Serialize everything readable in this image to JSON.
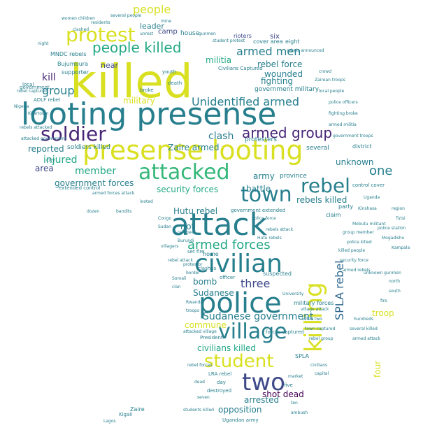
{
  "palette": {
    "yellow": "#d9e021",
    "yellow_green": "#a8db34",
    "green": "#35b779",
    "teal_green": "#22a884",
    "teal": "#1f968b",
    "blue_teal": "#277f8e",
    "blue": "#31688e",
    "indigo": "#3e4989",
    "purple": "#482677",
    "dark_purple": "#440154"
  },
  "words": [
    {
      "text": "killed",
      "color": "yellow"
    },
    {
      "text": "looting presense",
      "color": "blue_teal"
    },
    {
      "text": "presense looting",
      "color": "yellow"
    },
    {
      "text": "attack",
      "color": "blue_teal"
    },
    {
      "text": "police",
      "color": "blue_teal"
    },
    {
      "text": "civilian",
      "color": "blue_teal"
    },
    {
      "text": "attacked",
      "color": "green"
    },
    {
      "text": "killing",
      "color": "yellow"
    },
    {
      "text": "town",
      "color": "blue_teal"
    },
    {
      "text": "village",
      "color": "blue_teal"
    },
    {
      "text": "two",
      "color": "indigo"
    },
    {
      "text": "student",
      "color": "yellow"
    },
    {
      "text": "soldier",
      "color": "purple"
    },
    {
      "text": "protest",
      "color": "yellow"
    },
    {
      "text": "rebel",
      "color": "blue_teal"
    },
    {
      "text": "people killed",
      "color": "teal_green"
    },
    {
      "text": "armed group",
      "color": "purple"
    },
    {
      "text": "armed forces",
      "color": "teal_green"
    },
    {
      "text": "Unidentified armed",
      "color": "blue_teal"
    },
    {
      "text": "armed men",
      "color": "blue_teal"
    },
    {
      "text": "SPLA rebel",
      "color": "blue"
    },
    {
      "text": "people",
      "color": "yellow"
    },
    {
      "text": "Sudanese government",
      "color": "blue_teal"
    },
    {
      "text": "one",
      "color": "blue_teal"
    },
    {
      "text": "three",
      "color": "indigo"
    },
    {
      "text": "group",
      "color": "blue_teal"
    },
    {
      "text": "member",
      "color": "teal_green"
    },
    {
      "text": "fighting",
      "color": "blue_teal"
    },
    {
      "text": "clash",
      "color": "blue_teal"
    },
    {
      "text": "militia",
      "color": "teal_green"
    },
    {
      "text": "military",
      "color": "yellow"
    },
    {
      "text": "injured",
      "color": "teal_green"
    },
    {
      "text": "wounded",
      "color": "blue_teal"
    },
    {
      "text": "rebel force",
      "color": "blue_teal"
    },
    {
      "text": "shot dead",
      "color": "dark_purple"
    },
    {
      "text": "civilians killed",
      "color": "teal_green"
    },
    {
      "text": "arrested",
      "color": "blue_teal"
    },
    {
      "text": "opposition",
      "color": "blue_teal"
    },
    {
      "text": "kill",
      "color": "purple"
    },
    {
      "text": "reported",
      "color": "blue_teal"
    },
    {
      "text": "area",
      "color": "indigo"
    },
    {
      "text": "army",
      "color": "blue_teal"
    },
    {
      "text": "battle",
      "color": "blue_teal"
    },
    {
      "text": "Hutu rebel",
      "color": "blue_teal"
    },
    {
      "text": "riot",
      "color": "blue_teal"
    },
    {
      "text": "bomb",
      "color": "blue_teal"
    },
    {
      "text": "Sudanese",
      "color": "blue_teal"
    },
    {
      "text": "commune",
      "color": "yellow"
    },
    {
      "text": "troop",
      "color": "yellow"
    },
    {
      "text": "four",
      "color": "yellow"
    },
    {
      "text": "rebels killed",
      "color": "blue_teal"
    },
    {
      "text": "security forces",
      "color": "teal_green"
    },
    {
      "text": "government forces",
      "color": "blue_teal"
    },
    {
      "text": "Zaire armed",
      "color": "blue_teal"
    },
    {
      "text": "unknown",
      "color": "blue_teal"
    },
    {
      "text": "camp",
      "color": "indigo"
    },
    {
      "text": "leader",
      "color": "blue_teal"
    },
    {
      "text": "near",
      "color": "indigo"
    },
    {
      "text": "soldiers killed",
      "color": "blue_teal"
    },
    {
      "text": "government military",
      "color": "blue_teal"
    },
    {
      "text": "several",
      "color": "blue_teal"
    },
    {
      "text": "house",
      "color": "blue_teal"
    },
    {
      "text": "rioters",
      "color": "indigo"
    },
    {
      "text": "six",
      "color": "indigo"
    },
    {
      "text": "eight",
      "color": "blue_teal"
    },
    {
      "text": "cover area",
      "color": "blue_teal"
    },
    {
      "text": "protesters",
      "color": "blue_teal"
    },
    {
      "text": "province",
      "color": "blue_teal"
    },
    {
      "text": "claim",
      "color": "blue_teal"
    },
    {
      "text": "party",
      "color": "blue_teal"
    },
    {
      "text": "district",
      "color": "blue_teal"
    },
    {
      "text": "control cover",
      "color": "blue_teal"
    },
    {
      "text": "Ugandan army",
      "color": "blue_teal"
    },
    {
      "text": "Civilians Captured",
      "color": "blue_teal"
    },
    {
      "text": "government",
      "color": "blue_teal"
    },
    {
      "text": "home",
      "color": "blue_teal"
    },
    {
      "text": "suspected",
      "color": "blue_teal"
    },
    {
      "text": "destroyed",
      "color": "blue_teal"
    },
    {
      "text": "military forces",
      "color": "blue_teal"
    },
    {
      "text": "forces captured",
      "color": "blue_teal"
    },
    {
      "text": "President",
      "color": "blue_teal"
    },
    {
      "text": "day",
      "color": "blue_teal"
    },
    {
      "text": "five",
      "color": "blue_teal"
    },
    {
      "text": "LRA rebel",
      "color": "blue_teal"
    },
    {
      "text": "Bujumbura",
      "color": "blue_teal"
    },
    {
      "text": "supporter",
      "color": "blue_teal"
    },
    {
      "text": "MNDC rebels",
      "color": "blue_teal"
    },
    {
      "text": "ADLF rebel",
      "color": "blue_teal"
    },
    {
      "text": "youth",
      "color": "blue_teal"
    },
    {
      "text": "death",
      "color": "blue_teal"
    },
    {
      "text": "broke",
      "color": "blue_teal"
    },
    {
      "text": "set fire",
      "color": "blue_teal"
    },
    {
      "text": "clashes",
      "color": "blue_teal"
    },
    {
      "text": "officer",
      "color": "blue_teal"
    },
    {
      "text": "SPLA",
      "color": "blue_teal"
    },
    {
      "text": "Zaire",
      "color": "blue_teal"
    },
    {
      "text": "Kigali",
      "color": "blue_teal"
    },
    {
      "text": "extended control",
      "color": "blue_teal"
    },
    {
      "text": "city",
      "color": "blue_teal"
    },
    {
      "text": "local",
      "color": "blue_teal"
    },
    {
      "text": "Uganda",
      "color": "blue_teal"
    },
    {
      "text": "Kinshasa",
      "color": "blue_teal"
    },
    {
      "text": "University",
      "color": "blue_teal"
    },
    {
      "text": "rebel captured",
      "color": "blue_teal"
    },
    {
      "text": "rebels attacked",
      "color": "blue_teal"
    },
    {
      "text": "attacked government",
      "color": "blue_teal"
    },
    {
      "text": "government extended",
      "color": "blue_teal"
    },
    {
      "text": "police force",
      "color": "blue_teal"
    },
    {
      "text": "rebels attack",
      "color": "blue_teal"
    },
    {
      "text": "Hutu rebels",
      "color": "blue_teal"
    },
    {
      "text": "women children",
      "color": "blue_teal"
    },
    {
      "text": "clashed",
      "color": "blue_teal"
    },
    {
      "text": "several people",
      "color": "blue_teal"
    },
    {
      "text": "rebels announced",
      "color": "blue_teal"
    },
    {
      "text": "Mobutu militant",
      "color": "blue_teal"
    },
    {
      "text": "group member",
      "color": "blue_teal"
    },
    {
      "text": "police killed",
      "color": "blue_teal"
    },
    {
      "text": "killed people",
      "color": "blue_teal"
    },
    {
      "text": "security force",
      "color": "blue_teal"
    },
    {
      "text": "armed rebels",
      "color": "blue_teal"
    },
    {
      "text": "village attack",
      "color": "blue_teal"
    },
    {
      "text": "killed two",
      "color": "blue_teal"
    },
    {
      "text": "town captured",
      "color": "blue_teal"
    },
    {
      "text": "rebel group",
      "color": "blue_teal"
    },
    {
      "text": "civilians",
      "color": "blue_teal"
    },
    {
      "text": "capital",
      "color": "blue_teal"
    },
    {
      "text": "refugee",
      "color": "blue_teal"
    },
    {
      "text": "Burundi",
      "color": "blue_teal"
    },
    {
      "text": "protestor",
      "color": "blue_teal"
    },
    {
      "text": "border",
      "color": "blue_teal"
    },
    {
      "text": "Rwanda",
      "color": "blue_teal"
    },
    {
      "text": "troops",
      "color": "blue_teal"
    },
    {
      "text": "attacked village",
      "color": "blue_teal"
    },
    {
      "text": "rebel forces",
      "color": "blue_teal"
    },
    {
      "text": "dead",
      "color": "blue_teal"
    },
    {
      "text": "seven",
      "color": "blue_teal"
    },
    {
      "text": "Lagos",
      "color": "blue_teal"
    },
    {
      "text": "students killed",
      "color": "blue_teal"
    },
    {
      "text": "ten",
      "color": "blue_teal"
    },
    {
      "text": "ambush",
      "color": "blue_teal"
    },
    {
      "text": "market",
      "color": "blue_teal"
    },
    {
      "text": "armed forces attack",
      "color": "blue_teal"
    },
    {
      "text": "Nigeria",
      "color": "blue_teal"
    },
    {
      "text": "Khartoum",
      "color": "blue_teal"
    },
    {
      "text": "night",
      "color": "blue_teal"
    },
    {
      "text": "residents",
      "color": "blue_teal"
    },
    {
      "text": "unrest",
      "color": "blue_teal"
    },
    {
      "text": "mine",
      "color": "blue_teal"
    },
    {
      "text": "gunmen",
      "color": "blue_teal"
    },
    {
      "text": "student protest",
      "color": "blue_teal"
    },
    {
      "text": "crowd",
      "color": "blue_teal"
    },
    {
      "text": "Zairean troops",
      "color": "blue_teal"
    },
    {
      "text": "local people",
      "color": "blue_teal"
    },
    {
      "text": "police officers",
      "color": "blue_teal"
    },
    {
      "text": "fighting broke",
      "color": "blue_teal"
    },
    {
      "text": "armed militia",
      "color": "blue_teal"
    },
    {
      "text": "government troops",
      "color": "blue_teal"
    },
    {
      "text": "region",
      "color": "blue_teal"
    },
    {
      "text": "Tutsi",
      "color": "blue_teal"
    },
    {
      "text": "police station",
      "color": "blue_teal"
    },
    {
      "text": "Mogadishu",
      "color": "blue_teal"
    },
    {
      "text": "Kampala",
      "color": "blue_teal"
    },
    {
      "text": "unknown gunmen",
      "color": "blue_teal"
    },
    {
      "text": "north",
      "color": "blue_teal"
    },
    {
      "text": "south",
      "color": "blue_teal"
    },
    {
      "text": "fire",
      "color": "blue_teal"
    },
    {
      "text": "hundreds",
      "color": "blue_teal"
    },
    {
      "text": "several killed",
      "color": "blue_teal"
    },
    {
      "text": "armed attack",
      "color": "blue_teal"
    },
    {
      "text": "dozen",
      "color": "blue_teal"
    },
    {
      "text": "bandits",
      "color": "blue_teal"
    },
    {
      "text": "looted",
      "color": "blue_teal"
    },
    {
      "text": "Congo",
      "color": "blue_teal"
    },
    {
      "text": "Sudan",
      "color": "blue_teal"
    },
    {
      "text": "villagers",
      "color": "blue_teal"
    },
    {
      "text": "rebel attack",
      "color": "blue_teal"
    },
    {
      "text": "Somali",
      "color": "blue_teal"
    },
    {
      "text": "clan",
      "color": "blue_teal"
    }
  ]
}
